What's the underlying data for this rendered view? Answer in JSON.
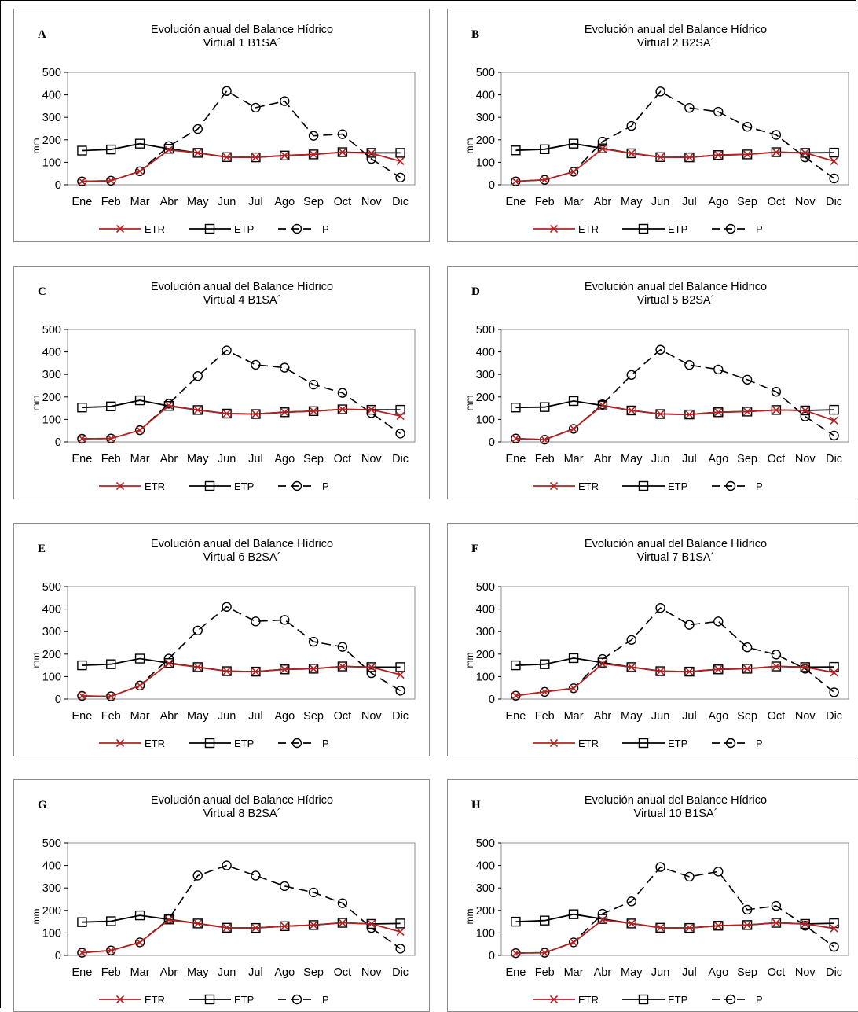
{
  "colors": {
    "ETR": "#b22222",
    "ETP": "#000000",
    "P": "#000000",
    "frame": "#8c8c8c"
  },
  "chart_data": [
    {
      "type": "line",
      "panel": "A",
      "title": "Evolución anual del Balance Hídrico",
      "subtitle": "Virtual 1 B1SA´",
      "xlabel": "",
      "ylabel": "mm",
      "ylim": [
        0,
        500
      ],
      "yticks": [
        "0",
        "100",
        "200",
        "300",
        "400",
        "500"
      ],
      "categories": [
        "Ene",
        "Feb",
        "Mar",
        "Abr",
        "May",
        "Jun",
        "Jul",
        "Ago",
        "Sep",
        "Oct",
        "Nov",
        "Dic"
      ],
      "series": [
        {
          "name": "ETR",
          "values": [
            15,
            18,
            60,
            155,
            142,
            123,
            122,
            130,
            135,
            145,
            140,
            105
          ]
        },
        {
          "name": "ETP",
          "values": [
            152,
            157,
            183,
            160,
            142,
            123,
            122,
            130,
            135,
            145,
            142,
            142
          ]
        },
        {
          "name": "P",
          "values": [
            15,
            18,
            60,
            172,
            248,
            417,
            343,
            372,
            218,
            225,
            115,
            32
          ]
        }
      ]
    },
    {
      "type": "line",
      "panel": "B",
      "title": "Evolución anual del Balance Hídrico",
      "subtitle": "Virtual 2 B2SA´",
      "xlabel": "",
      "ylabel": "mm",
      "ylim": [
        0,
        500
      ],
      "yticks": [
        "0",
        "100",
        "200",
        "300",
        "400",
        "500"
      ],
      "categories": [
        "Ene",
        "Feb",
        "Mar",
        "Abr",
        "May",
        "Jun",
        "Jul",
        "Ago",
        "Sep",
        "Oct",
        "Nov",
        "Dic"
      ],
      "series": [
        {
          "name": "ETR",
          "values": [
            15,
            22,
            58,
            160,
            140,
            123,
            122,
            132,
            135,
            145,
            142,
            105
          ]
        },
        {
          "name": "ETP",
          "values": [
            153,
            158,
            183,
            162,
            140,
            123,
            122,
            132,
            135,
            145,
            142,
            143
          ]
        },
        {
          "name": "P",
          "values": [
            15,
            22,
            58,
            192,
            262,
            415,
            342,
            325,
            258,
            222,
            122,
            28
          ]
        }
      ]
    },
    {
      "type": "line",
      "panel": "C",
      "title": "Evolución anual del Balance Hídrico",
      "subtitle": "Virtual 4 B1SA´",
      "xlabel": "",
      "ylabel": "mm",
      "ylim": [
        0,
        500
      ],
      "yticks": [
        "0",
        "100",
        "200",
        "300",
        "400",
        "500"
      ],
      "categories": [
        "Ene",
        "Feb",
        "Mar",
        "Abr",
        "May",
        "Jun",
        "Jul",
        "Ago",
        "Sep",
        "Oct",
        "Nov",
        "Dic"
      ],
      "series": [
        {
          "name": "ETR",
          "values": [
            14,
            15,
            52,
            162,
            142,
            126,
            124,
            132,
            137,
            145,
            143,
            115
          ]
        },
        {
          "name": "ETP",
          "values": [
            153,
            158,
            185,
            160,
            142,
            126,
            124,
            132,
            137,
            145,
            143,
            143
          ]
        },
        {
          "name": "P",
          "values": [
            14,
            15,
            52,
            170,
            293,
            407,
            343,
            330,
            255,
            218,
            128,
            37
          ]
        }
      ]
    },
    {
      "type": "line",
      "panel": "D",
      "title": "Evolución anual del Balance Hídrico",
      "subtitle": "Virtual 5 B2SA´",
      "xlabel": "",
      "ylabel": "mm",
      "ylim": [
        0,
        500
      ],
      "yticks": [
        "0",
        "100",
        "200",
        "300",
        "400",
        "500"
      ],
      "categories": [
        "Ene",
        "Feb",
        "Mar",
        "Abr",
        "May",
        "Jun",
        "Jul",
        "Ago",
        "Sep",
        "Oct",
        "Nov",
        "Dic"
      ],
      "series": [
        {
          "name": "ETR",
          "values": [
            15,
            10,
            58,
            163,
            140,
            124,
            122,
            132,
            135,
            142,
            140,
            95
          ]
        },
        {
          "name": "ETP",
          "values": [
            153,
            155,
            182,
            162,
            140,
            124,
            122,
            132,
            135,
            142,
            140,
            143
          ]
        },
        {
          "name": "P",
          "values": [
            15,
            10,
            58,
            167,
            298,
            410,
            342,
            322,
            277,
            223,
            113,
            28
          ]
        }
      ]
    },
    {
      "type": "line",
      "panel": "E",
      "title": "Evolución anual del Balance Hídrico",
      "subtitle": "Virtual 6 B2SA´",
      "xlabel": "",
      "ylabel": "mm",
      "ylim": [
        0,
        500
      ],
      "yticks": [
        "0",
        "100",
        "200",
        "300",
        "400",
        "500"
      ],
      "categories": [
        "Ene",
        "Feb",
        "Mar",
        "Abr",
        "May",
        "Jun",
        "Jul",
        "Ago",
        "Sep",
        "Oct",
        "Nov",
        "Dic"
      ],
      "series": [
        {
          "name": "ETR",
          "values": [
            14,
            12,
            60,
            158,
            142,
            124,
            122,
            132,
            135,
            145,
            142,
            108
          ]
        },
        {
          "name": "ETP",
          "values": [
            150,
            155,
            180,
            160,
            142,
            124,
            122,
            132,
            135,
            145,
            142,
            142
          ]
        },
        {
          "name": "P",
          "values": [
            14,
            12,
            60,
            180,
            305,
            410,
            345,
            352,
            255,
            232,
            115,
            37
          ]
        }
      ]
    },
    {
      "type": "line",
      "panel": "F",
      "title": "Evolución anual del Balance Hídrico",
      "subtitle": "Virtual 7 B1SA´",
      "xlabel": "",
      "ylabel": "mm",
      "ylim": [
        0,
        500
      ],
      "yticks": [
        "0",
        "100",
        "200",
        "300",
        "400",
        "500"
      ],
      "categories": [
        "Ene",
        "Feb",
        "Mar",
        "Abr",
        "May",
        "Jun",
        "Jul",
        "Ago",
        "Sep",
        "Oct",
        "Nov",
        "Dic"
      ],
      "series": [
        {
          "name": "ETR",
          "values": [
            15,
            32,
            48,
            157,
            142,
            124,
            122,
            132,
            135,
            145,
            142,
            118
          ]
        },
        {
          "name": "ETP",
          "values": [
            150,
            155,
            182,
            162,
            142,
            124,
            122,
            132,
            135,
            145,
            142,
            143
          ]
        },
        {
          "name": "P",
          "values": [
            15,
            32,
            48,
            178,
            263,
            405,
            330,
            345,
            230,
            198,
            135,
            30
          ]
        }
      ]
    },
    {
      "type": "line",
      "panel": "G",
      "title": "Evolución anual del Balance Hídrico",
      "subtitle": "Virtual 8 B2SA´",
      "xlabel": "",
      "ylabel": "mm",
      "ylim": [
        0,
        500
      ],
      "yticks": [
        "0",
        "100",
        "200",
        "300",
        "400",
        "500"
      ],
      "categories": [
        "Ene",
        "Feb",
        "Mar",
        "Abr",
        "May",
        "Jun",
        "Jul",
        "Ago",
        "Sep",
        "Oct",
        "Nov",
        "Dic"
      ],
      "series": [
        {
          "name": "ETR",
          "values": [
            12,
            22,
            58,
            158,
            142,
            123,
            122,
            130,
            135,
            145,
            140,
            105
          ]
        },
        {
          "name": "ETP",
          "values": [
            148,
            152,
            178,
            160,
            142,
            123,
            122,
            130,
            135,
            145,
            140,
            142
          ]
        },
        {
          "name": "P",
          "values": [
            12,
            22,
            58,
            162,
            355,
            400,
            355,
            308,
            280,
            232,
            122,
            30
          ]
        }
      ]
    },
    {
      "type": "line",
      "panel": "H",
      "title": "Evolución anual del Balance Hídrico",
      "subtitle": "Virtual 10 B1SA´",
      "xlabel": "",
      "ylabel": "mm",
      "ylim": [
        0,
        500
      ],
      "yticks": [
        "0",
        "100",
        "200",
        "300",
        "400",
        "500"
      ],
      "categories": [
        "Ene",
        "Feb",
        "Mar",
        "Abr",
        "May",
        "Jun",
        "Jul",
        "Ago",
        "Sep",
        "Oct",
        "Nov",
        "Dic"
      ],
      "series": [
        {
          "name": "ETR",
          "values": [
            10,
            12,
            58,
            158,
            142,
            123,
            122,
            132,
            135,
            145,
            140,
            120
          ]
        },
        {
          "name": "ETP",
          "values": [
            150,
            155,
            183,
            162,
            142,
            123,
            122,
            132,
            135,
            145,
            140,
            143
          ]
        },
        {
          "name": "P",
          "values": [
            10,
            12,
            58,
            185,
            240,
            393,
            350,
            373,
            203,
            220,
            132,
            38
          ]
        }
      ]
    }
  ]
}
